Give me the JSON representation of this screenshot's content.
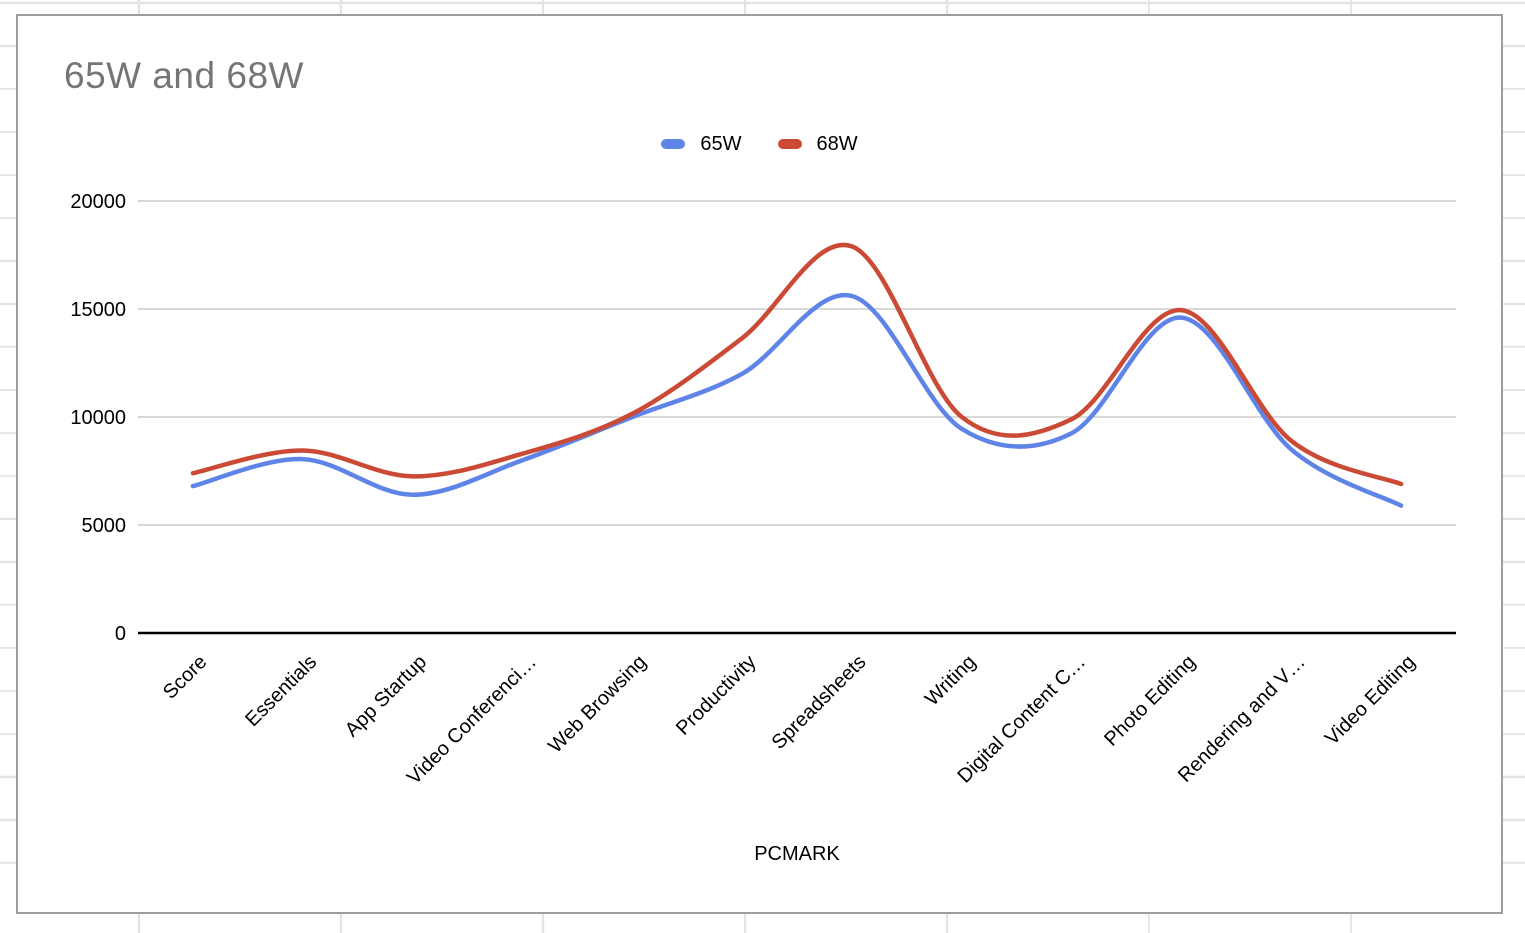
{
  "sheet": {
    "gridline_color": "#E3E3E3"
  },
  "chart_card": {
    "border_color": "#9E9E9E",
    "background": "#FFFFFF"
  },
  "chart_data": {
    "type": "line",
    "smooth": true,
    "title": "65W and 68W",
    "title_color": "#757575",
    "xlabel": "PCMARK",
    "ylabel": "",
    "ylim": [
      0,
      20000
    ],
    "yticks": [
      0,
      5000,
      10000,
      15000,
      20000
    ],
    "ytick_labels": [
      "0",
      "5000",
      "10000",
      "15000",
      "20000"
    ],
    "grid": true,
    "gridline_color": "#D9D9D9",
    "axis_line_color": "#000000",
    "label_color": "#000000",
    "legend_position": "top",
    "categories": [
      "Score",
      "Essentials",
      "App Startup",
      "Video Conferenci…",
      "Web Browsing",
      "Productivity",
      "Spreadsheets",
      "Writing",
      "Digital Content C…",
      "Photo Editing",
      "Rendering and V…",
      "Video Editing"
    ],
    "series": [
      {
        "name": "65W",
        "color": "#5E84E8",
        "values": [
          6800,
          8050,
          6400,
          8000,
          10000,
          12000,
          15600,
          9450,
          9250,
          14600,
          8500,
          5900
        ]
      },
      {
        "name": "68W",
        "color": "#CB4A36",
        "values": [
          7400,
          8450,
          7250,
          8300,
          10150,
          13650,
          17900,
          10000,
          9900,
          14950,
          8900,
          6900
        ]
      }
    ]
  }
}
